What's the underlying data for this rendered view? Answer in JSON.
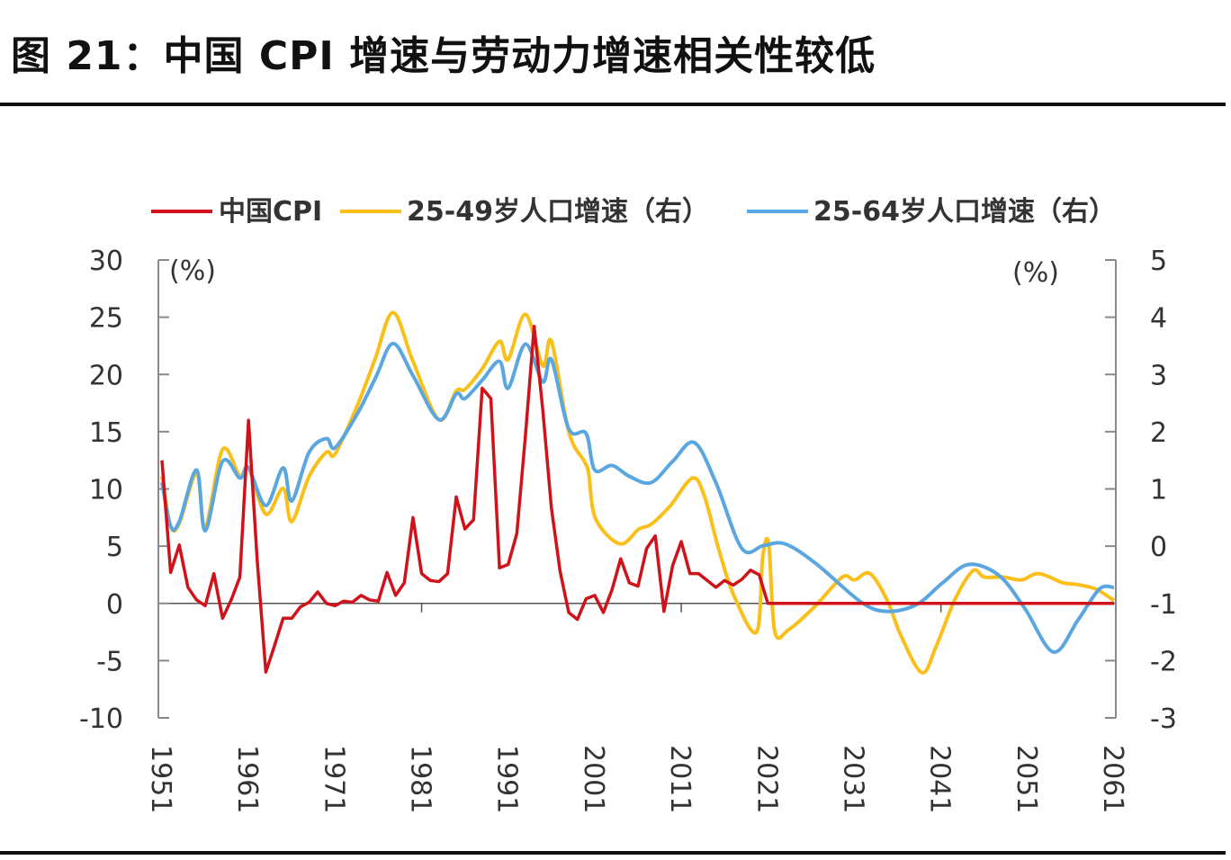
{
  "title": "图 21：中国 CPI 增速与劳动力增速相关性较低",
  "chart_data": {
    "type": "line",
    "title": "",
    "left_unit": "(%)",
    "right_unit": "(%)",
    "xlim": [
      1951,
      2061
    ],
    "x_ticks": [
      "1951",
      "1961",
      "1971",
      "1981",
      "1991",
      "2001",
      "2011",
      "2021",
      "2031",
      "2041",
      "2051",
      "2061"
    ],
    "ylim_left": [
      -10,
      30
    ],
    "y_ticks_left": [
      "30",
      "25",
      "20",
      "15",
      "10",
      "5",
      "0",
      "-5",
      "-10"
    ],
    "ylim_right": [
      -3,
      5
    ],
    "y_ticks_right": [
      "5",
      "4",
      "3",
      "2",
      "1",
      "0",
      "-1",
      "-2",
      "-3"
    ],
    "grid": false,
    "legend_position": "top",
    "series": [
      {
        "name": "中国CPI",
        "axis": "left",
        "color": "#d0121b",
        "x": [
          1951,
          1952,
          1953,
          1954,
          1955,
          1956,
          1957,
          1958,
          1959,
          1960,
          1961,
          1962,
          1963,
          1964,
          1965,
          1966,
          1967,
          1968,
          1969,
          1970,
          1971,
          1972,
          1973,
          1974,
          1975,
          1976,
          1977,
          1978,
          1979,
          1980,
          1981,
          1982,
          1983,
          1984,
          1985,
          1986,
          1987,
          1988,
          1989,
          1990,
          1991,
          1992,
          1993,
          1994,
          1995,
          1996,
          1997,
          1998,
          1999,
          2000,
          2001,
          2002,
          2003,
          2004,
          2005,
          2006,
          2007,
          2008,
          2009,
          2010,
          2011,
          2012,
          2013,
          2014,
          2015,
          2016,
          2017,
          2018,
          2019,
          2020,
          2021,
          2031,
          2041,
          2051,
          2061
        ],
        "y": [
          12.5,
          2.7,
          5.1,
          1.4,
          0.3,
          -0.2,
          2.6,
          -1.3,
          0.3,
          2.3,
          16.0,
          3.8,
          -6.0,
          -3.7,
          -1.3,
          -1.3,
          -0.3,
          0.1,
          1.0,
          0.0,
          -0.2,
          0.2,
          0.1,
          0.7,
          0.3,
          0.2,
          2.7,
          0.7,
          1.8,
          7.5,
          2.6,
          2.0,
          1.9,
          2.6,
          9.3,
          6.5,
          7.3,
          18.8,
          17.9,
          3.1,
          3.4,
          6.1,
          14.7,
          24.2,
          16.9,
          8.3,
          2.8,
          -0.8,
          -1.4,
          0.4,
          0.7,
          -0.8,
          1.2,
          3.9,
          1.8,
          1.5,
          4.8,
          5.9,
          -0.7,
          3.3,
          5.4,
          2.6,
          2.6,
          2.0,
          1.4,
          2.0,
          1.6,
          2.1,
          2.9,
          2.5,
          0,
          0,
          0,
          0,
          0
        ]
      },
      {
        "name": "25-49岁人口增速（右）",
        "axis": "right",
        "color": "#fbbf1a",
        "x": [
          1951,
          1952,
          1953,
          1955,
          1956,
          1958,
          1960,
          1961,
          1963,
          1965,
          1966,
          1968,
          1970,
          1971,
          1973.5,
          1975.6,
          1977.7,
          1980,
          1983,
          1985,
          1986,
          1988,
          1990,
          1991,
          1993,
          1995,
          1996,
          1998,
          1999.8,
          2000.3,
          2001.1,
          2003.9,
          2006.1,
          2007.5,
          2009.7,
          2012.3,
          2013.7,
          2015.3,
          2017.1,
          2019.7,
          2020.4,
          2021.1,
          2021.8,
          2023.4,
          2026.4,
          2029.6,
          2031,
          2032.8,
          2034.8,
          2036.4,
          2038.8,
          2040.4,
          2042.6,
          2044.7,
          2046,
          2048.2,
          2050.3,
          2052.3,
          2055.1,
          2056.7,
          2058.9,
          2061
        ],
        "y": [
          1.22,
          0.35,
          0.4,
          1.26,
          0.32,
          1.69,
          1.22,
          1.37,
          0.56,
          1.01,
          0.43,
          1.22,
          1.64,
          1.61,
          2.43,
          3.26,
          4.08,
          3.23,
          2.21,
          2.71,
          2.74,
          3.1,
          3.58,
          3.26,
          4.05,
          3.15,
          3.58,
          2.0,
          1.48,
          1.27,
          0.48,
          0.04,
          0.3,
          0.38,
          0.7,
          1.19,
          0.86,
          -0.04,
          -0.87,
          -1.5,
          -0.2,
          0.04,
          -1.49,
          -1.46,
          -1.06,
          -0.54,
          -0.59,
          -0.48,
          -0.95,
          -1.57,
          -2.21,
          -1.77,
          -0.94,
          -0.43,
          -0.54,
          -0.54,
          -0.59,
          -0.48,
          -0.64,
          -0.67,
          -0.75,
          -0.95
        ]
      },
      {
        "name": "25-64岁人口增速（右）",
        "axis": "right",
        "color": "#5aa6e0",
        "x": [
          1951,
          1952,
          1953,
          1955,
          1956,
          1958,
          1960,
          1961,
          1963,
          1965,
          1966,
          1968,
          1970,
          1971,
          1973.6,
          1975.7,
          1977.7,
          1980,
          1983,
          1985,
          1986,
          1988,
          1990,
          1991,
          1993,
          1995,
          1996,
          1998,
          2000,
          2001,
          2003,
          2005,
          2007.5,
          2010,
          2012.5,
          2015,
          2018,
          2020.5,
          2023,
          2026.6,
          2031.8,
          2034.8,
          2038.2,
          2041.2,
          2044.2,
          2047.7,
          2050.7,
          2054,
          2056.8,
          2059.3,
          2061
        ],
        "y": [
          1.11,
          0.35,
          0.43,
          1.33,
          0.27,
          1.48,
          1.19,
          1.37,
          0.71,
          1.37,
          0.79,
          1.64,
          1.88,
          1.72,
          2.32,
          2.95,
          3.54,
          2.98,
          2.21,
          2.66,
          2.58,
          2.9,
          3.23,
          2.76,
          3.53,
          2.87,
          3.26,
          2.05,
          1.97,
          1.33,
          1.41,
          1.22,
          1.11,
          1.48,
          1.81,
          1.11,
          -0.04,
          0.01,
          0.04,
          -0.31,
          -0.98,
          -1.14,
          -1.02,
          -0.64,
          -0.32,
          -0.51,
          -1.09,
          -1.85,
          -1.3,
          -0.75,
          -0.72
        ]
      }
    ]
  }
}
